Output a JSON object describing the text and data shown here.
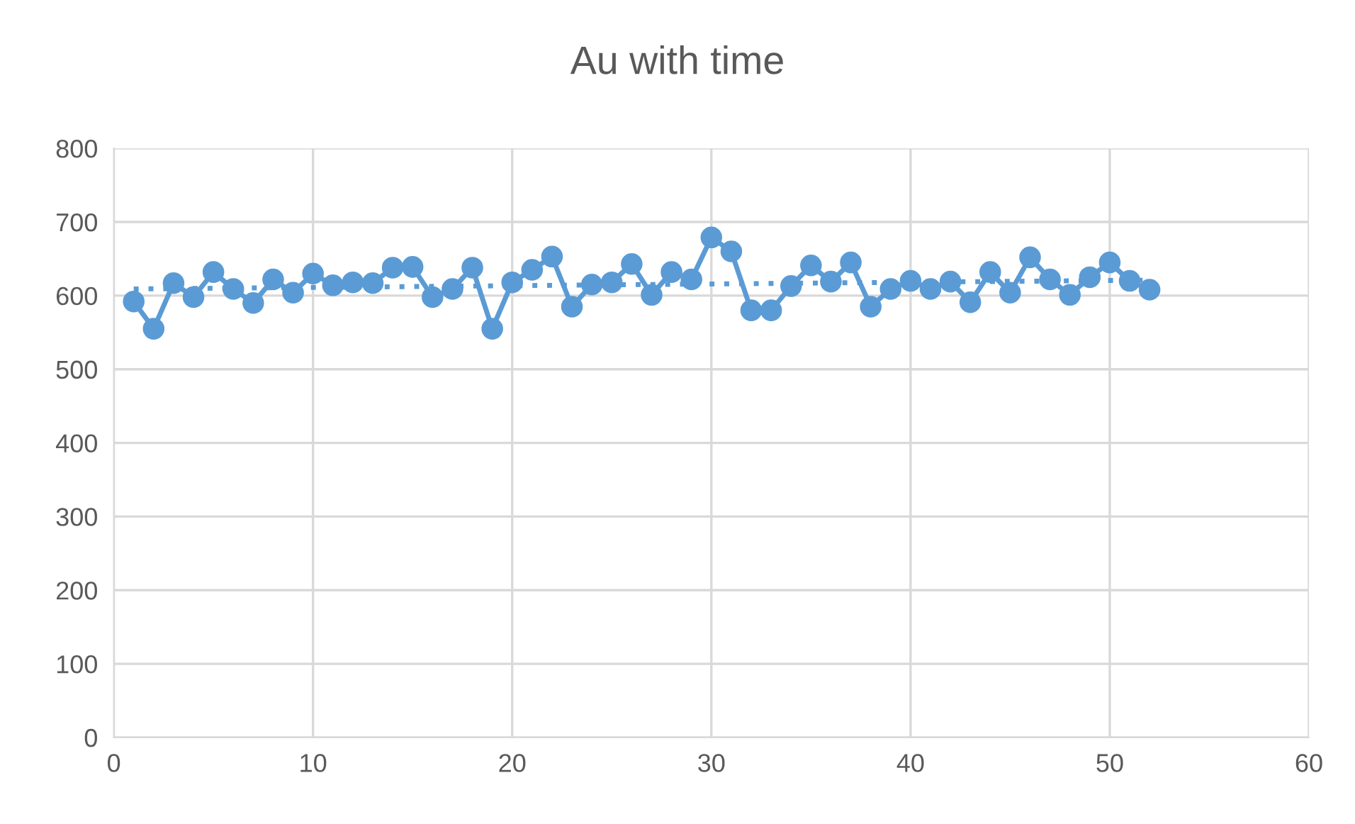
{
  "chart_data": {
    "type": "line",
    "title": "Au with time",
    "series": [
      {
        "color": "#5b9bd5",
        "marker": "circle",
        "line_style": "solid",
        "x": [
          1,
          2,
          3,
          4,
          5,
          6,
          7,
          8,
          9,
          10,
          11,
          12,
          13,
          14,
          15,
          16,
          17,
          18,
          19,
          20,
          21,
          22,
          23,
          24,
          25,
          26,
          27,
          28,
          29,
          30,
          31,
          32,
          33,
          34,
          35,
          36,
          37,
          38,
          39,
          40,
          41,
          42,
          43,
          44,
          45,
          46,
          47,
          48,
          49,
          50,
          51,
          52
        ],
        "values": [
          592,
          555,
          617,
          598,
          632,
          609,
          590,
          622,
          604,
          630,
          614,
          618,
          617,
          638,
          639,
          598,
          609,
          638,
          555,
          618,
          635,
          653,
          585,
          615,
          618,
          643,
          601,
          632,
          622,
          679,
          660,
          580,
          580,
          613,
          641,
          619,
          645,
          585,
          609,
          620,
          609,
          619,
          591,
          632,
          604,
          652,
          622,
          601,
          625,
          645,
          620,
          608
        ]
      },
      {
        "color": "#5b9bd5",
        "marker": "none",
        "line_style": "dotted",
        "x": [
          1,
          52
        ],
        "values": [
          609,
          621
        ]
      }
    ],
    "xlim": [
      0,
      60
    ],
    "xticks": [
      0,
      10,
      20,
      30,
      40,
      50,
      60
    ],
    "ylim": [
      0,
      800
    ],
    "yticks": [
      0,
      100,
      200,
      300,
      400,
      500,
      600,
      700,
      800
    ],
    "grid": true,
    "legend": false
  }
}
